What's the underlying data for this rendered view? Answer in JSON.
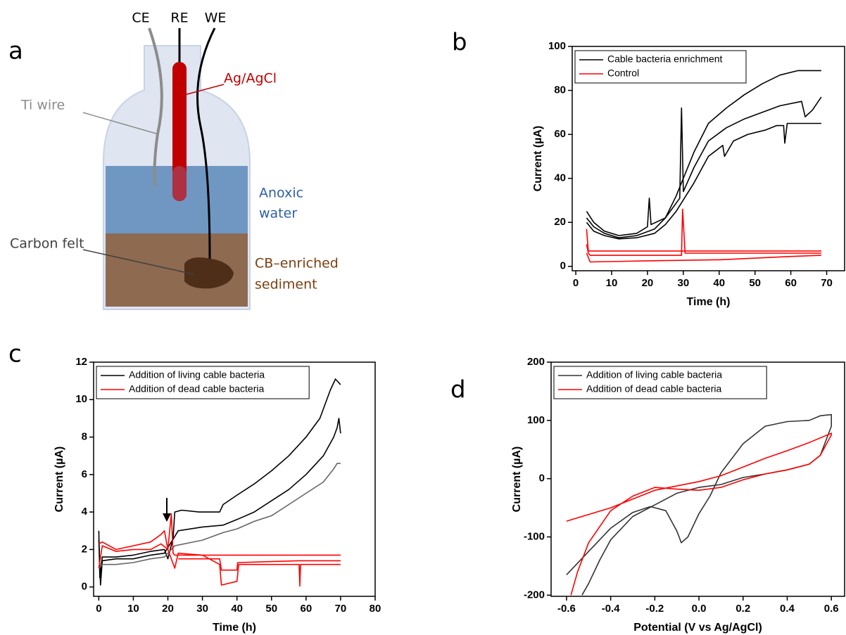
{
  "diagram": {
    "panel_label": "a",
    "electrodes": [
      "CE",
      "RE",
      "WE"
    ],
    "ti_wire": "Ti wire",
    "reference": "Ag/AgCl",
    "water": [
      "Anoxic",
      "water"
    ],
    "felt": "Carbon felt",
    "sediment": [
      "CB–enriched",
      "sediment"
    ]
  },
  "chart_data": [
    {
      "type": "line",
      "panel_label": "b",
      "xlabel": "Time (h)",
      "ylabel": "Current (µA)",
      "xlim": [
        -1,
        75
      ],
      "ylim": [
        -2,
        100
      ],
      "xticks": [
        0,
        10,
        20,
        30,
        40,
        50,
        60,
        70
      ],
      "yticks": [
        0,
        20,
        40,
        60,
        80,
        100
      ],
      "legend": "upper left",
      "series": [
        {
          "name": "Cable bacteria enrichment",
          "color": "#000000",
          "traces": [
            {
              "x": [
                3,
                5,
                8,
                12,
                17,
                20,
                20.5,
                21,
                25,
                28,
                33,
                37,
                42,
                47,
                52,
                57,
                62,
                68.5
              ],
              "values": [
                25,
                20,
                16,
                14,
                15,
                18,
                31,
                19,
                22,
                32,
                52,
                65,
                72,
                78,
                83,
                87,
                89,
                89
              ]
            },
            {
              "x": [
                3,
                5,
                8,
                12,
                17,
                22,
                25,
                29,
                29.5,
                30,
                33,
                37,
                42,
                47,
                52,
                57,
                63,
                64,
                66,
                68.5
              ],
              "values": [
                22,
                18,
                15,
                13,
                14,
                17,
                22,
                31,
                72,
                34,
                45,
                57,
                63,
                67,
                70,
                73,
                75,
                68,
                71,
                77
              ]
            },
            {
              "x": [
                3,
                5,
                8,
                12,
                17,
                22,
                25,
                28,
                33,
                37,
                41,
                41.5,
                44,
                48,
                53,
                56,
                58,
                58.3,
                59,
                68.5
              ],
              "values": [
                20,
                16,
                14,
                12.5,
                13,
                15,
                19,
                25,
                38,
                50,
                55,
                50,
                57,
                60,
                62,
                64,
                64,
                56,
                65,
                65
              ]
            }
          ]
        },
        {
          "name": "Control",
          "color": "#ff0000",
          "traces": [
            {
              "x": [
                3,
                3.5,
                10,
                68.5
              ],
              "values": [
                17,
                7,
                7,
                7
              ]
            },
            {
              "x": [
                3,
                3.5,
                4,
                29.5,
                29.8,
                30.5,
                40,
                68.5
              ],
              "values": [
                10,
                6,
                5,
                5,
                26,
                6,
                6,
                6
              ]
            },
            {
              "x": [
                3,
                4,
                20,
                40,
                60,
                68.5
              ],
              "values": [
                6,
                2,
                2.5,
                3,
                4.5,
                5
              ]
            }
          ]
        }
      ]
    },
    {
      "type": "line",
      "panel_label": "c",
      "xlabel": "Time (h)",
      "ylabel": "Current (µA)",
      "xlim": [
        -1.5,
        80
      ],
      "ylim": [
        -0.5,
        12
      ],
      "xticks": [
        0,
        10,
        20,
        30,
        40,
        50,
        60,
        70,
        80
      ],
      "yticks": [
        0,
        2,
        4,
        6,
        8,
        10,
        12
      ],
      "legend": "upper left",
      "series": [
        {
          "name": "Addition of living cable bacteria",
          "color": "#000000",
          "traces": [
            {
              "x": [
                0,
                0.3,
                1,
                5,
                10,
                15,
                19,
                20,
                21.5,
                22,
                24,
                29,
                35,
                36,
                40,
                45,
                50,
                55,
                60,
                64,
                67,
                68.5,
                70
              ],
              "values": [
                3,
                0.5,
                1.6,
                1.6,
                1.7,
                1.9,
                2,
                1.5,
                2.6,
                4,
                4.1,
                4,
                4,
                4.4,
                4.9,
                5.5,
                6.2,
                7,
                8,
                9,
                10.5,
                11.1,
                10.8
              ]
            },
            {
              "x": [
                0,
                0.5,
                1,
                5,
                10,
                15,
                19,
                22,
                23,
                30,
                36,
                40,
                45,
                50,
                55,
                60,
                65,
                68,
                69,
                69.5,
                70
              ],
              "values": [
                2.5,
                0.1,
                1.4,
                1.5,
                1.5,
                1.7,
                1.8,
                2.7,
                3,
                3.2,
                3.3,
                3.6,
                4,
                4.6,
                5.2,
                6,
                7,
                8,
                8.5,
                9,
                8.2
              ]
            },
            {
              "color": "#666666",
              "x": [
                0,
                1,
                5,
                10,
                15,
                19,
                22,
                30,
                36,
                40,
                45,
                50,
                55,
                60,
                65,
                68,
                69,
                70
              ],
              "values": [
                1,
                1.2,
                1.2,
                1.3,
                1.5,
                1.6,
                2.2,
                2.5,
                2.9,
                3.1,
                3.5,
                3.8,
                4.4,
                5,
                5.6,
                6.3,
                6.6,
                6.6
              ]
            }
          ]
        },
        {
          "name": "Addition of dead cable bacteria",
          "color": "#ff0000",
          "traces": [
            {
              "x": [
                0,
                1,
                5,
                10,
                15,
                18,
                19,
                20,
                21,
                21.5,
                22,
                30,
                70
              ],
              "values": [
                2.3,
                2.4,
                2,
                2.2,
                2.4,
                2.8,
                3,
                2,
                3.9,
                1.8,
                1.7,
                1.7,
                1.7
              ]
            },
            {
              "x": [
                0,
                1,
                5,
                10,
                15,
                18,
                20,
                22,
                23,
                30,
                35,
                35.5,
                40,
                40.5,
                45,
                58,
                58.2,
                58.4,
                70
              ],
              "values": [
                1,
                2.2,
                1.9,
                2,
                2,
                2.3,
                2,
                1,
                1.8,
                1.7,
                1.2,
                0.1,
                0.3,
                1.2,
                1.2,
                1.2,
                0.05,
                1.2,
                1.2
              ]
            },
            {
              "x": [
                23,
                35,
                35.5,
                40,
                40.2,
                58,
                70
              ],
              "values": [
                1.5,
                1.5,
                0.9,
                0.9,
                1.3,
                1.4,
                1.4
              ]
            }
          ]
        }
      ]
    },
    {
      "type": "line",
      "panel_label": "d",
      "xlabel": "Potential (V vs Ag/AgCl)",
      "ylabel": "Current (µA)",
      "xlim": [
        -0.67,
        0.66
      ],
      "ylim": [
        -202,
        200
      ],
      "xticks": [
        -0.6,
        -0.4,
        -0.2,
        {
          "value": 0,
          "label": "0.0"
        },
        0.2,
        0.4,
        0.6
      ],
      "yticks": [
        -200,
        -100,
        0,
        100,
        200
      ],
      "legend": "upper left",
      "series": [
        {
          "name": "Addition of living cable bacteria",
          "color": "#333333",
          "traces": [
            {
              "x": [
                -0.6,
                -0.5,
                -0.4,
                -0.3,
                -0.22,
                -0.15,
                -0.1,
                -0.08,
                -0.05,
                0,
                0.05,
                0.1,
                0.2,
                0.3,
                0.4,
                0.5,
                0.55,
                0.6,
                0.6,
                0.55,
                0.5,
                0.4,
                0.3,
                0.2,
                0.1,
                0,
                -0.1,
                -0.2,
                -0.3,
                -0.4,
                -0.45,
                -0.5,
                -0.53
              ],
              "values": [
                -165,
                -125,
                -85,
                -58,
                -48,
                -55,
                -90,
                -110,
                -100,
                -60,
                -30,
                10,
                60,
                90,
                98,
                100,
                108,
                110,
                90,
                40,
                25,
                15,
                8,
                2,
                -10,
                -15,
                -25,
                -45,
                -65,
                -105,
                -140,
                -180,
                -200
              ]
            }
          ]
        },
        {
          "name": "Addition of dead cable bacteria",
          "color": "#ff0000",
          "traces": [
            {
              "x": [
                -0.6,
                -0.4,
                -0.2,
                0,
                0.1,
                0.2,
                0.3,
                0.4,
                0.5,
                0.6,
                0.6,
                0.55,
                0.5,
                0.4,
                0.3,
                0.2,
                0.1,
                0,
                -0.1,
                -0.2,
                -0.3,
                -0.4,
                -0.5,
                -0.55,
                -0.58
              ],
              "values": [
                -73,
                -50,
                -20,
                -5,
                5,
                20,
                35,
                48,
                62,
                78,
                75,
                40,
                25,
                15,
                8,
                -2,
                -15,
                -20,
                -18,
                -15,
                -30,
                -55,
                -110,
                -160,
                -200
              ]
            }
          ]
        }
      ]
    }
  ]
}
